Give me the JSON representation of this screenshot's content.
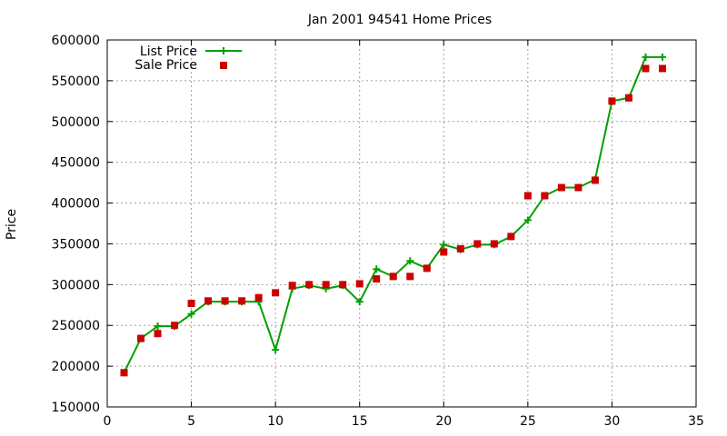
{
  "chart_data": {
    "type": "line",
    "title": "Jan 2001 94541 Home Prices",
    "xlabel": "",
    "ylabel": "Price",
    "xlim": [
      0,
      35
    ],
    "ylim": [
      150000,
      600000
    ],
    "xticks": [
      0,
      5,
      10,
      15,
      20,
      25,
      30,
      35
    ],
    "yticks": [
      150000,
      200000,
      250000,
      300000,
      350000,
      400000,
      450000,
      500000,
      550000,
      600000
    ],
    "grid": true,
    "legend_position": "top-left",
    "series": [
      {
        "name": "List Price",
        "style": "line-with-plus-markers",
        "color": "#00a000",
        "x": [
          1,
          2,
          3,
          4,
          5,
          6,
          7,
          8,
          9,
          10,
          11,
          12,
          13,
          14,
          15,
          16,
          17,
          18,
          19,
          20,
          21,
          22,
          23,
          24,
          25,
          26,
          27,
          28,
          29,
          30,
          31,
          32,
          33
        ],
        "values": [
          192000,
          234000,
          249000,
          249000,
          264000,
          279000,
          279000,
          279000,
          279000,
          220000,
          295000,
          299000,
          295000,
          299000,
          279000,
          319000,
          310000,
          329000,
          320000,
          349000,
          343000,
          349000,
          349000,
          359000,
          379000,
          409000,
          419000,
          419000,
          429000,
          525000,
          529000,
          579000,
          579000
        ]
      },
      {
        "name": "Sale Price",
        "style": "square-markers",
        "color": "#cc0000",
        "x": [
          1,
          2,
          3,
          4,
          5,
          6,
          7,
          8,
          9,
          10,
          11,
          12,
          13,
          14,
          15,
          16,
          17,
          18,
          19,
          20,
          21,
          22,
          23,
          24,
          25,
          26,
          27,
          28,
          29,
          30,
          31,
          32,
          33
        ],
        "values": [
          192000,
          234000,
          240000,
          250000,
          277000,
          280000,
          280000,
          280000,
          284000,
          290000,
          299000,
          300000,
          300000,
          300000,
          301000,
          307000,
          310000,
          310000,
          320000,
          340000,
          344000,
          350000,
          350000,
          359000,
          409000,
          409000,
          419000,
          419000,
          428000,
          525000,
          529000,
          565000,
          565000
        ]
      }
    ]
  }
}
